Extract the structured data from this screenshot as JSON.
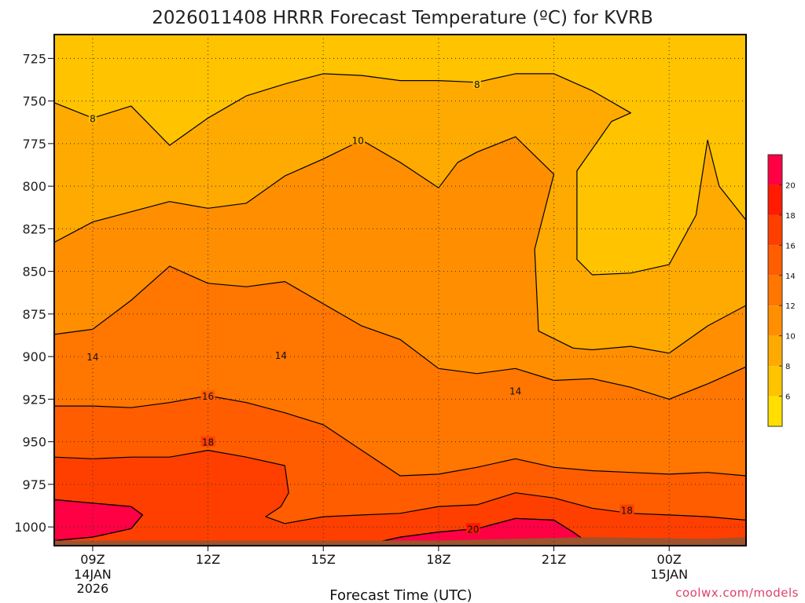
{
  "chart_data": {
    "type": "heatmap",
    "title": "2026011408 HRRR Forecast Temperature (ºC) for KVRB",
    "xlabel": "Forecast Time (UTC)",
    "ylabel": "",
    "units": "ºC",
    "x_ticks": [
      {
        "hour": 1,
        "label": "09Z",
        "sub": [
          "14JAN",
          "2026"
        ]
      },
      {
        "hour": 4,
        "label": "12Z",
        "sub": []
      },
      {
        "hour": 7,
        "label": "15Z",
        "sub": []
      },
      {
        "hour": 10,
        "label": "18Z",
        "sub": []
      },
      {
        "hour": 13,
        "label": "21Z",
        "sub": []
      },
      {
        "hour": 16,
        "label": "00Z",
        "sub": [
          "15JAN"
        ]
      }
    ],
    "xlim": [
      0,
      18
    ],
    "y_ticks": [
      725,
      750,
      775,
      800,
      825,
      850,
      875,
      900,
      925,
      950,
      975,
      1000
    ],
    "ylim": [
      711,
      1011
    ],
    "grid": true,
    "colorbar": {
      "levels": [
        4,
        6,
        8,
        10,
        12,
        14,
        16,
        18,
        20,
        22
      ],
      "tick_labels": [
        6,
        8,
        10,
        12,
        14,
        16,
        18,
        20
      ],
      "colors": [
        "#ffde00",
        "#ffc300",
        "#ffaa00",
        "#ff8f00",
        "#ff7600",
        "#ff5d00",
        "#ff3f00",
        "#ff1a00",
        "#ff0044"
      ]
    },
    "contour_labels": [
      {
        "value": 8,
        "hour": 1.0,
        "pressure": 760
      },
      {
        "value": 8,
        "hour": 11.0,
        "pressure": 740
      },
      {
        "value": 10,
        "hour": 7.9,
        "pressure": 773
      },
      {
        "value": 14,
        "hour": 1.0,
        "pressure": 900
      },
      {
        "value": 14,
        "hour": 5.9,
        "pressure": 899
      },
      {
        "value": 16,
        "hour": 4.0,
        "pressure": 923
      },
      {
        "value": 14,
        "hour": 12.0,
        "pressure": 920
      },
      {
        "value": 18,
        "hour": 4.0,
        "pressure": 950
      },
      {
        "value": 18,
        "hour": 14.9,
        "pressure": 990
      },
      {
        "value": 20,
        "hour": 10.9,
        "pressure": 1001
      }
    ],
    "regions": [
      {
        "level": 6,
        "polygon": [
          [
            0,
            711
          ],
          [
            18,
            711
          ],
          [
            18,
            1011
          ],
          [
            0,
            1011
          ]
        ]
      },
      {
        "level": 8,
        "polygon": [
          [
            0,
            751
          ],
          [
            1,
            760
          ],
          [
            2,
            753
          ],
          [
            3,
            776
          ],
          [
            4,
            760
          ],
          [
            5,
            747
          ],
          [
            6,
            740
          ],
          [
            7,
            734
          ],
          [
            8,
            735
          ],
          [
            9,
            738
          ],
          [
            10,
            738
          ],
          [
            11,
            739
          ],
          [
            12,
            734
          ],
          [
            13,
            734
          ],
          [
            14,
            744
          ],
          [
            15,
            757
          ],
          [
            14.5,
            762
          ],
          [
            13.6,
            791
          ],
          [
            13.6,
            843
          ],
          [
            14,
            852
          ],
          [
            15,
            851
          ],
          [
            16,
            846
          ],
          [
            16.7,
            817
          ],
          [
            17,
            773
          ],
          [
            17.3,
            800
          ],
          [
            18,
            820
          ],
          [
            18,
            1011
          ],
          [
            0,
            1011
          ]
        ]
      },
      {
        "level": 10,
        "polygon": [
          [
            0,
            833
          ],
          [
            1,
            821
          ],
          [
            2,
            815
          ],
          [
            3,
            809
          ],
          [
            4,
            813
          ],
          [
            5,
            810
          ],
          [
            6,
            794
          ],
          [
            7,
            784
          ],
          [
            8,
            773
          ],
          [
            9,
            786
          ],
          [
            10,
            801
          ],
          [
            10.5,
            786
          ],
          [
            11,
            780
          ],
          [
            12,
            771
          ],
          [
            13,
            793
          ],
          [
            12.5,
            837
          ],
          [
            12.6,
            885
          ],
          [
            13.5,
            895
          ],
          [
            14,
            896
          ],
          [
            15,
            894
          ],
          [
            16,
            898
          ],
          [
            17,
            882
          ],
          [
            18,
            870
          ],
          [
            18,
            1011
          ],
          [
            0,
            1011
          ]
        ]
      },
      {
        "level": 12,
        "polygon": [
          [
            0,
            887
          ],
          [
            1,
            884
          ],
          [
            2,
            867
          ],
          [
            3,
            847
          ],
          [
            4,
            857
          ],
          [
            5,
            859
          ],
          [
            6,
            856
          ],
          [
            7,
            869
          ],
          [
            8,
            882
          ],
          [
            9,
            890
          ],
          [
            10,
            907
          ],
          [
            11,
            910
          ],
          [
            12,
            907
          ],
          [
            13,
            914
          ],
          [
            14,
            913
          ],
          [
            15,
            918
          ],
          [
            16,
            925
          ],
          [
            17,
            916
          ],
          [
            18,
            906
          ],
          [
            18,
            1011
          ],
          [
            0,
            1011
          ]
        ]
      },
      {
        "level": 14,
        "polygon": [
          [
            0,
            929
          ],
          [
            1,
            929
          ],
          [
            2,
            930
          ],
          [
            3,
            927
          ],
          [
            4,
            923
          ],
          [
            5,
            927
          ],
          [
            6,
            933
          ],
          [
            7,
            940
          ],
          [
            8,
            955
          ],
          [
            9,
            970
          ],
          [
            10,
            969
          ],
          [
            11,
            965
          ],
          [
            12,
            960
          ],
          [
            13,
            965
          ],
          [
            14,
            967
          ],
          [
            15,
            968
          ],
          [
            16,
            969
          ],
          [
            17,
            968
          ],
          [
            18,
            970
          ],
          [
            18,
            1011
          ],
          [
            0,
            1011
          ]
        ]
      },
      {
        "level": 16,
        "polygon": [
          [
            0,
            959
          ],
          [
            1,
            960
          ],
          [
            2,
            959
          ],
          [
            3,
            959
          ],
          [
            4,
            955
          ],
          [
            5,
            959
          ],
          [
            6,
            964
          ],
          [
            6.1,
            980
          ],
          [
            5.9,
            988
          ],
          [
            5.5,
            994
          ],
          [
            6,
            998
          ],
          [
            7,
            994
          ],
          [
            8,
            993
          ],
          [
            9,
            992
          ],
          [
            10,
            988
          ],
          [
            11,
            987
          ],
          [
            12,
            980
          ],
          [
            13,
            983
          ],
          [
            14,
            989
          ],
          [
            15,
            992
          ],
          [
            16,
            993
          ],
          [
            17,
            994
          ],
          [
            18,
            996
          ],
          [
            18,
            1011
          ],
          [
            0,
            1011
          ]
        ]
      },
      {
        "level": 18,
        "polygon": [
          [
            0,
            984
          ],
          [
            1,
            986
          ],
          [
            2,
            988
          ],
          [
            2.3,
            993
          ],
          [
            2,
            1001
          ],
          [
            1,
            1006
          ],
          [
            0,
            1008
          ]
        ]
      },
      {
        "level": 18,
        "polygon": [
          [
            8,
            1011
          ],
          [
            9,
            1006
          ],
          [
            10,
            1003
          ],
          [
            11,
            1001
          ],
          [
            12,
            995
          ],
          [
            13,
            996
          ],
          [
            13.5,
            1003
          ],
          [
            14,
            1011
          ]
        ]
      },
      {
        "level": 20,
        "polygon": [
          [
            8,
            1011
          ],
          [
            9,
            1006
          ],
          [
            10,
            1003
          ],
          [
            11,
            1001
          ],
          [
            12,
            995
          ],
          [
            13,
            996
          ],
          [
            13.5,
            1003
          ],
          [
            14,
            1011
          ]
        ]
      },
      {
        "level": 20,
        "polygon": [
          [
            0,
            984
          ],
          [
            1,
            986
          ],
          [
            2,
            988
          ],
          [
            2.3,
            993
          ],
          [
            2,
            1001
          ],
          [
            1,
            1006
          ],
          [
            0,
            1008
          ]
        ]
      }
    ],
    "ground": {
      "color": "#a0522d",
      "top": [
        [
          0,
          1008
        ],
        [
          6,
          1008
        ],
        [
          10,
          1008
        ],
        [
          12,
          1007
        ],
        [
          14,
          1006
        ],
        [
          17,
          1007
        ],
        [
          18,
          1006
        ]
      ]
    }
  },
  "credit": "coolwx.com/models"
}
